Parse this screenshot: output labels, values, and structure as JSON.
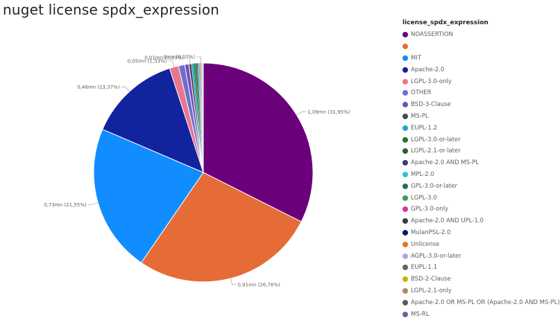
{
  "title": "nuget license spdx_expression",
  "chart_data": {
    "type": "pie",
    "legend_title": "license_spdx_expression",
    "legend_position": "right",
    "slices": [
      {
        "name": "NOASSERTION",
        "value": 1.09,
        "percent": 31.95,
        "label": "1,09mn (31,95%)",
        "color": "#6b007b"
      },
      {
        "name": "",
        "value": 0.91,
        "percent": 26.76,
        "label": "0,91mn (26,76%)",
        "color": "#e66c37"
      },
      {
        "name": "MIT",
        "value": 0.73,
        "percent": 21.55,
        "label": "0,73mn (21,55%)",
        "color": "#118dff"
      },
      {
        "name": "Apache-2.0",
        "value": 0.46,
        "percent": 13.37,
        "label": "0,46mn (13,37%)",
        "color": "#12239e"
      },
      {
        "name": "LGPL-3.0-only",
        "value": 0.05,
        "percent": 1.33,
        "label": "0,05mn (1,33%)",
        "color": "#e8768f"
      },
      {
        "name": "OTHER",
        "value": 0.03,
        "percent": 0.9,
        "label": "",
        "color": "#6b6fcc"
      },
      {
        "name": "BSD-3-Clause",
        "value": 0.02,
        "percent": 0.6,
        "label": "",
        "color": "#744ec2"
      },
      {
        "name": "MS-PL",
        "value": 0.01,
        "percent": 0.39,
        "label": "0,01mn (0,39%)",
        "color": "#4a4a4a"
      },
      {
        "name": "EUPL-1.2",
        "value": 0.01,
        "percent": 0.3,
        "label": "",
        "color": "#1aa8c6"
      },
      {
        "name": "LGPL-3.0-or-later",
        "value": 0.01,
        "percent": 0.25,
        "label": "",
        "color": "#1f7a1f"
      },
      {
        "name": "LGPL-2.1-or-later",
        "value": 0.01,
        "percent": 0.2,
        "label": "",
        "color": "#2d5e2d"
      },
      {
        "name": "Apache-2.0 AND MS-PL",
        "value": 0.005,
        "percent": 0.15,
        "label": "",
        "color": "#3a3a78"
      },
      {
        "name": "MPL-2.0",
        "value": 0.004,
        "percent": 0.12,
        "label": "",
        "color": "#2ac4e0"
      },
      {
        "name": "GPL-3.0-or-later",
        "value": 0.003,
        "percent": 0.1,
        "label": "",
        "color": "#1f6f5a"
      },
      {
        "name": "LGPL-3.0",
        "value": 0.003,
        "percent": 0.09,
        "label": "",
        "color": "#36a05a"
      },
      {
        "name": "GPL-3.0-only",
        "value": 0.002,
        "percent": 0.08,
        "label": "",
        "color": "#d63a9a"
      },
      {
        "name": "Apache-2.0 AND UPL-1.0",
        "value": 0.002,
        "percent": 0.07,
        "label": "0mn (0,07%)",
        "color": "#3b3b3b"
      },
      {
        "name": "MulanPSL-2.0",
        "value": 0.002,
        "percent": 0.06,
        "label": "",
        "color": "#0b1a6e"
      },
      {
        "name": "Unlicense",
        "value": 0.002,
        "percent": 0.05,
        "label": "",
        "color": "#e0762f"
      },
      {
        "name": "AGPL-3.0-or-later",
        "value": 0.001,
        "percent": 0.05,
        "label": "",
        "color": "#a8a8e0"
      },
      {
        "name": "EUPL-1.1",
        "value": 0.001,
        "percent": 0.04,
        "label": "",
        "color": "#666666"
      },
      {
        "name": "BSD-2-Clause",
        "value": 0.001,
        "percent": 0.04,
        "label": "",
        "color": "#c8b400"
      },
      {
        "name": "LGPL-2.1-only",
        "value": 0.001,
        "percent": 0.03,
        "label": "",
        "color": "#b08a5a"
      },
      {
        "name": "Apache-2.0 OR MS-PL OR (Apache-2.0 AND MS-PL)",
        "value": 0.001,
        "percent": 0.03,
        "label": "",
        "color": "#5a5a5a"
      },
      {
        "name": "MS-RL",
        "value": 0.001,
        "percent": 0.03,
        "label": "",
        "color": "#7a5aa8"
      }
    ]
  }
}
